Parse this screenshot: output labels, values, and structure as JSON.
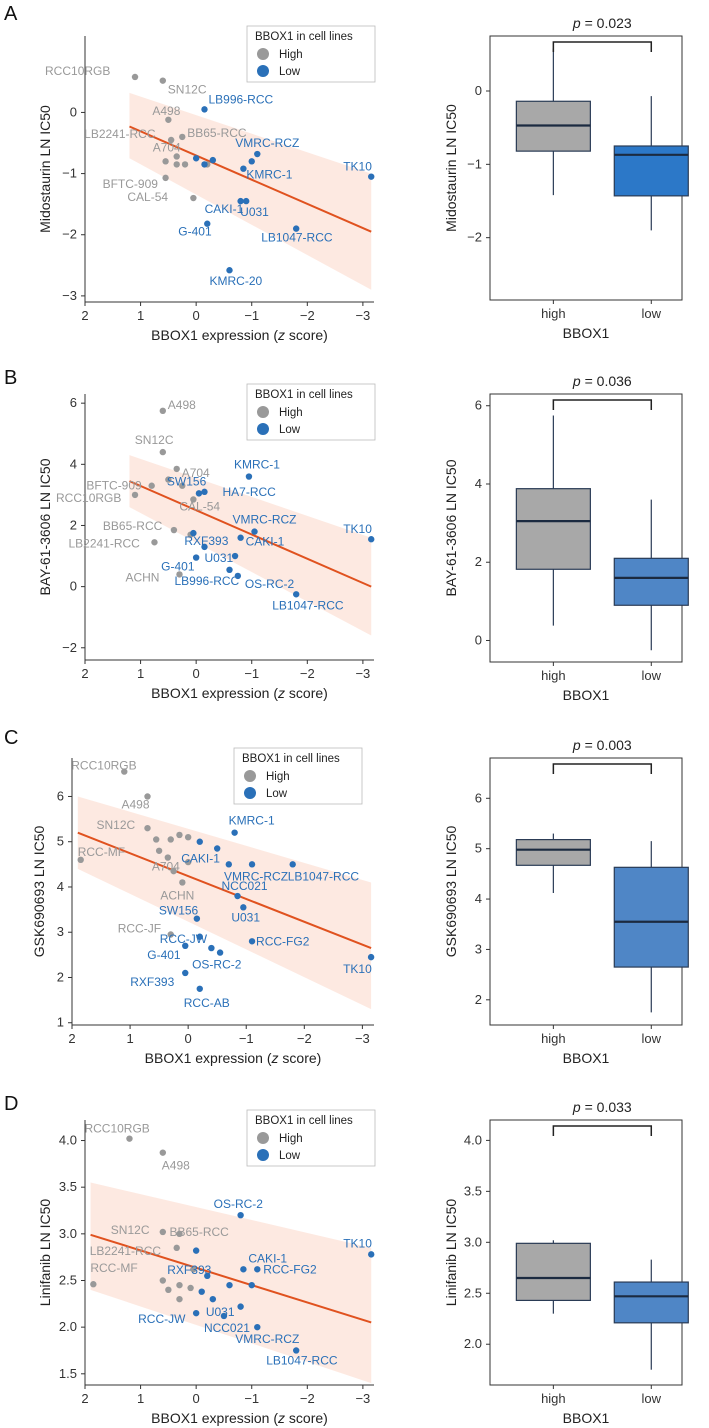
{
  "colors": {
    "high": "#999999",
    "low": "#2a70b8",
    "fit": "#e0521f",
    "band": "#fde5dc",
    "box_high": "#a8a8a8",
    "box_low": "#2c78c8",
    "box_low_light": "#4f86c6"
  },
  "chart_data": [
    {
      "panel": "A",
      "type": "scatter",
      "xlabel": "BBOX1 expression (z score)",
      "ylabel": "Midostaurin LN IC50",
      "xlim": [
        2,
        -3.2
      ],
      "ylim": [
        -3.1,
        1.25
      ],
      "xticks": [
        2,
        1,
        0,
        -1,
        -2,
        -3
      ],
      "yticks": [
        0,
        -1,
        -2,
        -3
      ],
      "legend": {
        "title": "BBOX1 in cell lines",
        "high": "High",
        "low": "Low"
      },
      "fit": {
        "x1": 1.2,
        "y1": -0.23,
        "x2": -3.15,
        "y2": -1.95,
        "upper_left": 0.32,
        "lower_left": -0.75,
        "upper_right": -1.0,
        "lower_right": -2.9
      },
      "points": [
        {
          "x": 1.1,
          "y": 0.58,
          "g": "high",
          "label": "RCC10RGB"
        },
        {
          "x": 0.6,
          "y": 0.52,
          "g": "high",
          "label": "SN12C"
        },
        {
          "x": 0.5,
          "y": -0.12,
          "g": "high",
          "label": "A498"
        },
        {
          "x": 0.25,
          "y": -0.4,
          "g": "high",
          "label": "BB65-RCC"
        },
        {
          "x": 0.45,
          "y": -0.45,
          "g": "high",
          "label": "LB2241-RCC"
        },
        {
          "x": 0.35,
          "y": -0.72,
          "g": "high",
          "label": "A704"
        },
        {
          "x": 0.55,
          "y": -1.07,
          "g": "high",
          "label": "BFTC-909"
        },
        {
          "x": 0.05,
          "y": -1.4,
          "g": "high",
          "label": "CAL-54"
        },
        {
          "x": 0.55,
          "y": -0.8,
          "g": "high",
          "label": ""
        },
        {
          "x": 0.35,
          "y": -0.85,
          "g": "high",
          "label": ""
        },
        {
          "x": 0.2,
          "y": -0.85,
          "g": "high",
          "label": ""
        },
        {
          "x": -0.2,
          "y": -0.85,
          "g": "high",
          "label": ""
        },
        {
          "x": -0.15,
          "y": 0.05,
          "g": "low",
          "label": "LB996-RCC"
        },
        {
          "x": -1.1,
          "y": -0.68,
          "g": "low",
          "label": "VMRC-RCZ"
        },
        {
          "x": -0.85,
          "y": -0.92,
          "g": "low",
          "label": "KMRC-1"
        },
        {
          "x": -3.15,
          "y": -1.05,
          "g": "low",
          "label": "TK10"
        },
        {
          "x": -0.9,
          "y": -1.45,
          "g": "low",
          "label": "U031"
        },
        {
          "x": -0.8,
          "y": -1.45,
          "g": "low",
          "label": "CAKI-1"
        },
        {
          "x": -1.8,
          "y": -1.9,
          "g": "low",
          "label": "LB1047-RCC"
        },
        {
          "x": -0.2,
          "y": -1.82,
          "g": "low",
          "label": "G-401"
        },
        {
          "x": -0.6,
          "y": -2.58,
          "g": "low",
          "label": "KMRC-20"
        },
        {
          "x": 0.0,
          "y": -0.75,
          "g": "low",
          "label": ""
        },
        {
          "x": -0.15,
          "y": -0.85,
          "g": "low",
          "label": ""
        },
        {
          "x": -0.3,
          "y": -0.78,
          "g": "low",
          "label": ""
        },
        {
          "x": -1.0,
          "y": -0.8,
          "g": "low",
          "label": ""
        }
      ]
    },
    {
      "panel": "B",
      "type": "scatter",
      "xlabel": "BBOX1 expression (z score)",
      "ylabel": "BAY-61-3606 LN IC50",
      "xlim": [
        2,
        -3.2
      ],
      "ylim": [
        -2.4,
        6.3
      ],
      "xticks": [
        2,
        1,
        0,
        -1,
        -2,
        -3
      ],
      "yticks": [
        6,
        4,
        2,
        0,
        -2
      ],
      "legend": {
        "title": "BBOX1 in cell lines",
        "high": "High",
        "low": "Low"
      },
      "fit": {
        "x1": 1.2,
        "y1": 3.45,
        "x2": -3.15,
        "y2": 0.0,
        "upper_left": 4.3,
        "lower_left": 2.6,
        "upper_right": 1.6,
        "lower_right": -1.6
      },
      "points": [
        {
          "x": 0.6,
          "y": 5.75,
          "g": "high",
          "label": "A498"
        },
        {
          "x": 0.6,
          "y": 4.4,
          "g": "high",
          "label": "SN12C"
        },
        {
          "x": 0.35,
          "y": 3.85,
          "g": "high",
          "label": "A704"
        },
        {
          "x": 0.5,
          "y": 3.5,
          "g": "high",
          "label": "BFTC-909"
        },
        {
          "x": 1.1,
          "y": 3.0,
          "g": "high",
          "label": "RCC10RGB"
        },
        {
          "x": 0.05,
          "y": 2.85,
          "g": "high",
          "label": "CAL-54"
        },
        {
          "x": 0.4,
          "y": 1.85,
          "g": "high",
          "label": "BB65-RCC"
        },
        {
          "x": 0.75,
          "y": 1.45,
          "g": "high",
          "label": "LB2241-RCC"
        },
        {
          "x": 0.3,
          "y": 0.4,
          "g": "high",
          "label": "ACHN"
        },
        {
          "x": 0.25,
          "y": 3.3,
          "g": "high",
          "label": ""
        },
        {
          "x": 0.8,
          "y": 3.3,
          "g": "high",
          "label": ""
        },
        {
          "x": 0.1,
          "y": 1.7,
          "g": "high",
          "label": ""
        },
        {
          "x": -0.95,
          "y": 3.6,
          "g": "low",
          "label": "KMRC-1"
        },
        {
          "x": -0.15,
          "y": 3.1,
          "g": "low",
          "label": "HA7-RCC"
        },
        {
          "x": -0.05,
          "y": 3.05,
          "g": "low",
          "label": "SW156"
        },
        {
          "x": -3.15,
          "y": 1.55,
          "g": "low",
          "label": "TK10"
        },
        {
          "x": -1.05,
          "y": 1.8,
          "g": "low",
          "label": "VMRC-RCZ"
        },
        {
          "x": 0.05,
          "y": 1.75,
          "g": "low",
          "label": "RXF393"
        },
        {
          "x": -0.15,
          "y": 1.3,
          "g": "low",
          "label": "U031"
        },
        {
          "x": -0.8,
          "y": 1.6,
          "g": "low",
          "label": "CAKI-1"
        },
        {
          "x": -0.7,
          "y": 1.0,
          "g": "low",
          "label": ""
        },
        {
          "x": 0.0,
          "y": 0.95,
          "g": "low",
          "label": "G-401"
        },
        {
          "x": -0.75,
          "y": 0.35,
          "g": "low",
          "label": "OS-RC-2"
        },
        {
          "x": -0.6,
          "y": 0.55,
          "g": "low",
          "label": "LB996-RCC"
        },
        {
          "x": -1.8,
          "y": -0.25,
          "g": "low",
          "label": "LB1047-RCC"
        }
      ]
    },
    {
      "panel": "C",
      "type": "scatter",
      "xlabel": "BBOX1 expression (z score)",
      "ylabel": "GSK690693 LN IC50",
      "xlim": [
        2,
        -3.2
      ],
      "ylim": [
        0.95,
        6.85
      ],
      "xticks": [
        2,
        1,
        0,
        -1,
        -2,
        -3
      ],
      "yticks": [
        6,
        5,
        4,
        3,
        2,
        1
      ],
      "legend": {
        "title": "BBOX1 in cell lines",
        "high": "High",
        "low": "Low"
      },
      "fit": {
        "x1": 1.9,
        "y1": 5.2,
        "x2": -3.15,
        "y2": 2.65,
        "upper_left": 6.0,
        "lower_left": 4.4,
        "upper_right": 4.1,
        "lower_right": 1.3
      },
      "points": [
        {
          "x": 1.1,
          "y": 6.55,
          "g": "high",
          "label": "RCC10RGB"
        },
        {
          "x": 0.7,
          "y": 6.0,
          "g": "high",
          "label": "A498"
        },
        {
          "x": 0.7,
          "y": 5.3,
          "g": "high",
          "label": "SN12C"
        },
        {
          "x": 1.85,
          "y": 4.6,
          "g": "high",
          "label": "RCC-MF"
        },
        {
          "x": 0.35,
          "y": 4.65,
          "g": "high",
          "label": "A704"
        },
        {
          "x": 0.1,
          "y": 4.1,
          "g": "high",
          "label": "ACHN"
        },
        {
          "x": 0.3,
          "y": 2.95,
          "g": "high",
          "label": "RCC-JF"
        },
        {
          "x": 0.55,
          "y": 5.05,
          "g": "high",
          "label": ""
        },
        {
          "x": 0.3,
          "y": 5.05,
          "g": "high",
          "label": ""
        },
        {
          "x": 0.15,
          "y": 5.15,
          "g": "high",
          "label": ""
        },
        {
          "x": 0.5,
          "y": 4.8,
          "g": "high",
          "label": ""
        },
        {
          "x": 0.0,
          "y": 4.55,
          "g": "high",
          "label": ""
        },
        {
          "x": 0.25,
          "y": 4.35,
          "g": "high",
          "label": ""
        },
        {
          "x": 0.0,
          "y": 5.1,
          "g": "high",
          "label": ""
        },
        {
          "x": -0.8,
          "y": 5.2,
          "g": "low",
          "label": "KMRC-1"
        },
        {
          "x": -0.5,
          "y": 4.85,
          "g": "low",
          "label": "CAKI-1"
        },
        {
          "x": -1.1,
          "y": 4.5,
          "g": "low",
          "label": "VMRC-RCZ"
        },
        {
          "x": -1.8,
          "y": 4.5,
          "g": "low",
          "label": "LB1047-RCC"
        },
        {
          "x": -0.85,
          "y": 3.8,
          "g": "low",
          "label": "NCC021"
        },
        {
          "x": -0.95,
          "y": 3.55,
          "g": "low",
          "label": "U031"
        },
        {
          "x": -0.15,
          "y": 3.3,
          "g": "low",
          "label": "SW156"
        },
        {
          "x": -0.2,
          "y": 2.9,
          "g": "low",
          "label": "RCC-JW"
        },
        {
          "x": -1.1,
          "y": 2.8,
          "g": "low",
          "label": "RCC-FG2"
        },
        {
          "x": -0.55,
          "y": 2.55,
          "g": "low",
          "label": "OS-RC-2"
        },
        {
          "x": 0.05,
          "y": 2.7,
          "g": "low",
          "label": "G-401"
        },
        {
          "x": -3.15,
          "y": 2.45,
          "g": "low",
          "label": "TK10"
        },
        {
          "x": 0.05,
          "y": 2.1,
          "g": "low",
          "label": "RXF393"
        },
        {
          "x": -0.2,
          "y": 1.75,
          "g": "low",
          "label": "RCC-AB"
        },
        {
          "x": -0.2,
          "y": 5.0,
          "g": "low",
          "label": ""
        },
        {
          "x": -0.7,
          "y": 4.5,
          "g": "low",
          "label": ""
        },
        {
          "x": -0.4,
          "y": 2.65,
          "g": "low",
          "label": ""
        }
      ]
    },
    {
      "panel": "D",
      "type": "scatter",
      "xlabel": "BBOX1 expression (z score)",
      "ylabel": "Linifanib LN IC50",
      "xlim": [
        2,
        -3.2
      ],
      "ylim": [
        1.38,
        4.22
      ],
      "xticks": [
        2,
        1,
        0,
        -1,
        -2,
        -3
      ],
      "yticks": [
        4.0,
        3.5,
        3.0,
        2.5,
        2.0,
        1.5
      ],
      "legend": {
        "title": "BBOX1 in cell lines",
        "high": "High",
        "low": "Low"
      },
      "fit": {
        "x1": 1.9,
        "y1": 2.99,
        "x2": -3.15,
        "y2": 2.05,
        "upper_left": 3.55,
        "lower_left": 2.4,
        "upper_right": 2.85,
        "lower_right": 1.4
      },
      "points": [
        {
          "x": 1.2,
          "y": 4.02,
          "g": "high",
          "label": "RCC10RGB"
        },
        {
          "x": 0.6,
          "y": 3.87,
          "g": "high",
          "label": "A498"
        },
        {
          "x": 0.6,
          "y": 3.02,
          "g": "high",
          "label": "SN12C"
        },
        {
          "x": 0.3,
          "y": 3.0,
          "g": "high",
          "label": "BB65-RCC"
        },
        {
          "x": 0.35,
          "y": 2.85,
          "g": "high",
          "label": "LB2241-RCC"
        },
        {
          "x": 1.85,
          "y": 2.46,
          "g": "high",
          "label": "RCC-MF"
        },
        {
          "x": 0.5,
          "y": 2.4,
          "g": "high",
          "label": ""
        },
        {
          "x": 0.3,
          "y": 2.45,
          "g": "high",
          "label": ""
        },
        {
          "x": 0.1,
          "y": 2.42,
          "g": "high",
          "label": ""
        },
        {
          "x": 0.05,
          "y": 2.62,
          "g": "high",
          "label": ""
        },
        {
          "x": 0.6,
          "y": 2.5,
          "g": "high",
          "label": ""
        },
        {
          "x": 0.3,
          "y": 2.3,
          "g": "high",
          "label": ""
        },
        {
          "x": -0.8,
          "y": 3.2,
          "g": "low",
          "label": "OS-RC-2"
        },
        {
          "x": -0.85,
          "y": 2.62,
          "g": "low",
          "label": "CAKI-1"
        },
        {
          "x": -3.15,
          "y": 2.78,
          "g": "low",
          "label": "TK10"
        },
        {
          "x": -0.2,
          "y": 2.55,
          "g": "low",
          "label": "RXF393"
        },
        {
          "x": -1.1,
          "y": 2.62,
          "g": "low",
          "label": "RCC-FG2"
        },
        {
          "x": -0.3,
          "y": 2.3,
          "g": "low",
          "label": "U031"
        },
        {
          "x": 0.0,
          "y": 2.15,
          "g": "low",
          "label": "RCC-JW"
        },
        {
          "x": -0.5,
          "y": 2.12,
          "g": "low",
          "label": "NCC021"
        },
        {
          "x": -1.1,
          "y": 2.0,
          "g": "low",
          "label": "VMRC-RCZ"
        },
        {
          "x": -1.8,
          "y": 1.75,
          "g": "low",
          "label": "LB1047-RCC"
        },
        {
          "x": -0.1,
          "y": 2.38,
          "g": "low",
          "label": ""
        },
        {
          "x": -0.6,
          "y": 2.45,
          "g": "low",
          "label": ""
        },
        {
          "x": 0.0,
          "y": 2.82,
          "g": "low",
          "label": ""
        },
        {
          "x": -0.8,
          "y": 2.22,
          "g": "low",
          "label": ""
        },
        {
          "x": -1.0,
          "y": 2.45,
          "g": "low",
          "label": ""
        }
      ]
    },
    {
      "panel": "A",
      "type": "box",
      "xlabel": "BBOX1",
      "ylabel": "Midostaurin LN IC50",
      "ylim": [
        -2.85,
        0.75
      ],
      "yticks": [
        0,
        -1,
        -2
      ],
      "categories": [
        "high",
        "low"
      ],
      "p": "0.023",
      "boxes": [
        {
          "g": "high",
          "min": -1.42,
          "q1": -0.82,
          "median": -0.47,
          "q3": -0.14,
          "max": 0.58
        },
        {
          "g": "low",
          "min": -1.9,
          "q1": -1.43,
          "median": -0.87,
          "q3": -0.75,
          "max": -0.07
        }
      ]
    },
    {
      "panel": "B",
      "type": "box",
      "xlabel": "BBOX1",
      "ylabel": "BAY-61-3606 LN IC50",
      "ylim": [
        -0.55,
        6.3
      ],
      "yticks": [
        0,
        2,
        4,
        6
      ],
      "categories": [
        "high",
        "low"
      ],
      "p": "0.036",
      "boxes": [
        {
          "g": "high",
          "min": 0.38,
          "q1": 1.82,
          "median": 3.05,
          "q3": 3.88,
          "max": 5.75
        },
        {
          "g": "low",
          "min": -0.25,
          "q1": 0.9,
          "median": 1.6,
          "q3": 2.1,
          "max": 3.6
        }
      ]
    },
    {
      "panel": "C",
      "type": "box",
      "xlabel": "BBOX1",
      "ylabel": "GSK690693 LN IC50",
      "ylim": [
        1.5,
        6.8
      ],
      "yticks": [
        2,
        3,
        4,
        5,
        6
      ],
      "categories": [
        "high",
        "low"
      ],
      "p": "0.003",
      "boxes": [
        {
          "g": "high",
          "min": 4.12,
          "q1": 4.67,
          "median": 4.98,
          "q3": 5.18,
          "max": 5.3
        },
        {
          "g": "low",
          "min": 1.75,
          "q1": 2.65,
          "median": 3.55,
          "q3": 4.63,
          "max": 5.15
        }
      ]
    },
    {
      "panel": "D",
      "type": "box",
      "xlabel": "BBOX1",
      "ylabel": "Linifanib LN IC50",
      "ylim": [
        1.6,
        4.2
      ],
      "yticks": [
        2.0,
        2.5,
        3.0,
        3.5,
        4.0
      ],
      "categories": [
        "high",
        "low"
      ],
      "p": "0.033",
      "boxes": [
        {
          "g": "high",
          "min": 2.3,
          "q1": 2.43,
          "median": 2.65,
          "q3": 2.99,
          "max": 3.02
        },
        {
          "g": "low",
          "min": 1.75,
          "q1": 2.21,
          "median": 2.47,
          "q3": 2.61,
          "max": 2.83
        }
      ]
    }
  ]
}
